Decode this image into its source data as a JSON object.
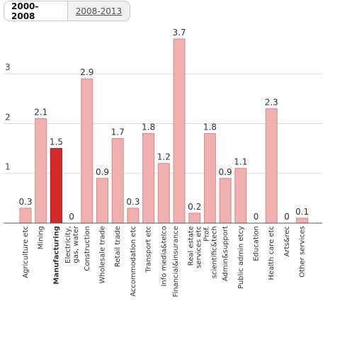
{
  "tabs": [
    {
      "label": "2000-2008",
      "active": true
    },
    {
      "label": "2008-2013",
      "active": false
    }
  ],
  "colors": {
    "bar": "#f0b0b0",
    "bar_stroke": "#d98a8a",
    "highlight": "#d42a2a",
    "highlight_stroke": "#9e1c1c",
    "grid": "#dddddd",
    "axis": "#555555"
  },
  "chart_data": {
    "type": "bar",
    "categories": [
      "Agriculture etc",
      "Mining",
      "Manufacturing",
      "Electricity, gas, water",
      "Construction",
      "Wholesale trade",
      "Retail trade",
      "Accommodation etc",
      "Transport etc",
      "Info media&telco",
      "Financial&insurance",
      "Real estate services etc",
      "Prof. scientific&tech",
      "Admin&support",
      "Public admin etcy",
      "Education",
      "Health care etc",
      "Arts&rec",
      "Other services"
    ],
    "values": [
      0.3,
      2.1,
      1.5,
      0,
      2.9,
      0.9,
      1.7,
      0.3,
      1.8,
      1.2,
      3.7,
      0.2,
      1.8,
      0.9,
      1.1,
      0,
      2.3,
      0,
      0.1
    ],
    "data_labels": [
      "0.3",
      "2.1",
      "1.5",
      "0",
      "2.9",
      "0.9",
      "1.7",
      "0.3",
      "1.8",
      "1.2",
      "3.7",
      "0.2",
      "1.8",
      "0.9",
      "1.1",
      "0",
      "2.3",
      "0",
      "0.1"
    ],
    "highlight": "Manufacturing",
    "yticks": [
      1,
      2,
      3
    ],
    "ylim": [
      0,
      3.7
    ],
    "grid": true,
    "title": "",
    "xlabel": "",
    "ylabel": ""
  }
}
